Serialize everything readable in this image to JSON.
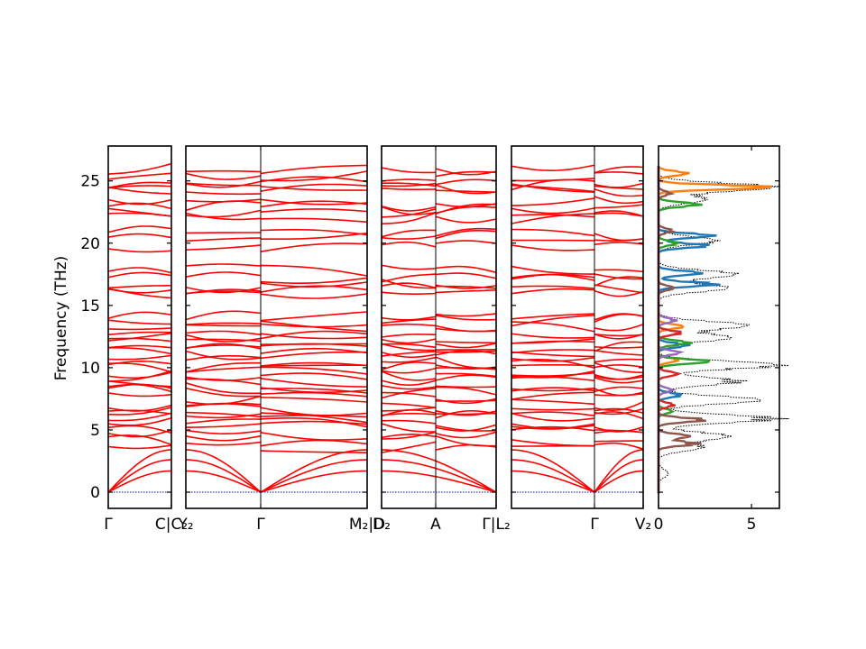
{
  "chart_data": {
    "type": "line",
    "ylabel": "Frequency (THz)",
    "ylim": [
      -1.3,
      27.8
    ],
    "yticks": [
      0,
      5,
      10,
      15,
      20,
      25
    ],
    "band_color": "#ff0000",
    "zero_line_color": "#0000cc",
    "band_panels": [
      {
        "labels": [
          "Γ",
          "C|C₂"
        ],
        "segments": 1
      },
      {
        "labels": [
          "Y₂",
          "Γ",
          "M₂|D"
        ],
        "segments": 2
      },
      {
        "labels": [
          "D₂",
          "A",
          "Γ|L₂"
        ],
        "segments": 2
      },
      {
        "labels": [
          "L₂",
          "Γ",
          "V₂"
        ],
        "segments": 2
      }
    ],
    "band_tick_labels": [
      "Γ",
      "C|C₂",
      "Y₂",
      "Γ",
      "M₂|D",
      "D₂",
      "A",
      "Γ|L₂",
      "Γ",
      "V₂"
    ],
    "band_levels_thz": [
      26.0,
      25.4,
      24.6,
      24.4,
      24.2,
      23.3,
      22.8,
      22.5,
      22.0,
      20.8,
      20.6,
      19.7,
      17.8,
      17.2,
      16.8,
      16.3,
      16.0,
      14.1,
      13.8,
      13.3,
      12.8,
      12.4,
      12.0,
      11.6,
      11.2,
      10.9,
      10.4,
      10.0,
      9.7,
      9.3,
      8.8,
      8.4,
      8.0,
      7.6,
      7.2,
      6.7,
      6.3,
      6.0,
      5.6,
      5.2,
      4.6,
      4.1,
      3.6
    ],
    "acoustic_branches_thz_at_zone_edge": [
      3.4,
      2.6,
      1.7
    ],
    "dos_panel": {
      "xlim": [
        0,
        6.5
      ],
      "xticks": [
        0,
        5
      ],
      "total_dos_style": "dotted-black",
      "series": [
        {
          "color": "#1f77b4",
          "peaks": [
            [
              19.8,
              2.6
            ],
            [
              20.6,
              2.8
            ],
            [
              17.6,
              2.2
            ],
            [
              16.7,
              3.0
            ],
            [
              11.8,
              1.5
            ],
            [
              7.8,
              1.2
            ]
          ]
        },
        {
          "color": "#ff7f0e",
          "peaks": [
            [
              24.5,
              5.8
            ],
            [
              25.6,
              1.5
            ],
            [
              13.3,
              1.3
            ],
            [
              10.6,
              1.0
            ]
          ]
        },
        {
          "color": "#2ca02c",
          "peaks": [
            [
              23.1,
              2.1
            ],
            [
              20.0,
              1.0
            ],
            [
              12.0,
              1.6
            ],
            [
              10.5,
              2.7
            ],
            [
              6.5,
              0.7
            ]
          ]
        },
        {
          "color": "#d62728",
          "peaks": [
            [
              12.8,
              1.2
            ],
            [
              9.5,
              1.0
            ],
            [
              7.0,
              0.8
            ]
          ]
        },
        {
          "color": "#9467bd",
          "peaks": [
            [
              13.8,
              0.9
            ],
            [
              11.2,
              1.1
            ],
            [
              8.2,
              0.7
            ]
          ]
        },
        {
          "color": "#8c564b",
          "peaks": [
            [
              5.8,
              2.4
            ],
            [
              4.5,
              1.6
            ],
            [
              3.9,
              2.0
            ],
            [
              16.4,
              0.8
            ],
            [
              21.0,
              0.7
            ],
            [
              24.0,
              0.6
            ]
          ]
        }
      ],
      "total_peaks": [
        [
          24.5,
          6.0
        ],
        [
          23.5,
          2.4
        ],
        [
          20.2,
          3.0
        ],
        [
          17.5,
          4.0
        ],
        [
          16.4,
          3.6
        ],
        [
          13.4,
          4.6
        ],
        [
          12.4,
          3.7
        ],
        [
          10.2,
          6.3
        ],
        [
          8.9,
          4.2
        ],
        [
          7.4,
          5.3
        ],
        [
          5.9,
          6.1
        ],
        [
          4.5,
          3.6
        ],
        [
          3.6,
          2.2
        ],
        [
          1.5,
          0.5
        ]
      ]
    }
  }
}
